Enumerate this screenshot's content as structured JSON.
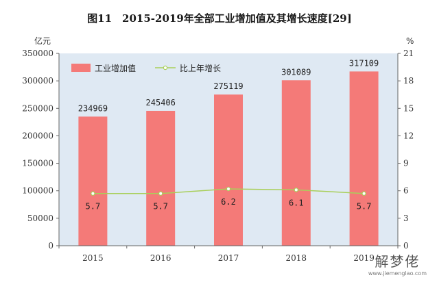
{
  "chart_data": {
    "type": "bar",
    "title": "图11　2015-2019年全部工业增加值及其增长速度[29]",
    "left_unit": "亿元",
    "right_unit": "%",
    "categories": [
      "2015",
      "2016",
      "2017",
      "2018",
      "2019"
    ],
    "ylim": [
      0,
      350000
    ],
    "y2lim": [
      0,
      21
    ],
    "yticks": [
      0,
      50000,
      100000,
      150000,
      200000,
      250000,
      300000,
      350000
    ],
    "y2ticks": [
      0,
      3,
      6,
      9,
      12,
      15,
      18,
      21
    ],
    "grid": false,
    "legend_position": "top-left",
    "series": [
      {
        "name": "工业增加值",
        "type": "bar",
        "axis": "left",
        "color": "#f47a78",
        "values": [
          234969,
          245406,
          275119,
          301089,
          317109
        ]
      },
      {
        "name": "比上年增长",
        "type": "line",
        "axis": "right",
        "color": "#a9cf5a",
        "values": [
          5.7,
          5.7,
          6.2,
          6.1,
          5.7
        ]
      }
    ]
  },
  "watermark": {
    "text": "解梦佬",
    "url": "www.jiemenglao.com"
  },
  "colors": {
    "plot_background": "#dfe9f3",
    "bar": "#f47a78",
    "line": "#a9cf5a"
  }
}
